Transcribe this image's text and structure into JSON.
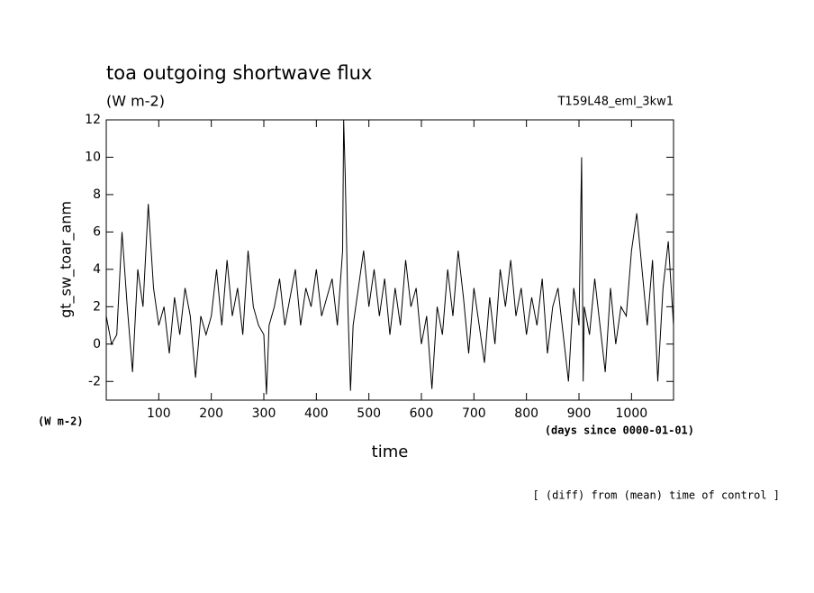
{
  "chart_data": {
    "type": "line",
    "title": "toa outgoing shortwave flux",
    "units": "(W m-2)",
    "run": "T159L48_eml_3kw1",
    "y_label": "gt_sw_toar_anm",
    "y_units": "(W m-2)",
    "x_units": "(days since 0000-01-01)",
    "x_label": "time",
    "footnote": "[ (diff) from (mean) time of control ]",
    "xlim": [
      0,
      1080
    ],
    "xticks": [
      100,
      200,
      300,
      400,
      500,
      600,
      700,
      800,
      900,
      1000
    ],
    "ylim": [
      -3,
      12
    ],
    "yticks": [
      -2,
      0,
      2,
      4,
      6,
      8,
      10,
      12
    ],
    "grid": false,
    "series": [
      {
        "name": "gt_sw_toar_anm",
        "color": "#000000",
        "x": [
          0,
          10,
          20,
          30,
          40,
          50,
          60,
          70,
          80,
          90,
          100,
          110,
          120,
          130,
          140,
          150,
          160,
          170,
          180,
          190,
          200,
          210,
          220,
          230,
          240,
          250,
          260,
          270,
          280,
          290,
          300,
          305,
          310,
          320,
          330,
          340,
          350,
          360,
          370,
          380,
          390,
          400,
          410,
          420,
          430,
          440,
          450,
          452,
          455,
          460,
          465,
          470,
          480,
          490,
          500,
          510,
          520,
          530,
          540,
          550,
          560,
          570,
          580,
          590,
          600,
          610,
          620,
          630,
          640,
          650,
          660,
          670,
          680,
          690,
          700,
          710,
          720,
          730,
          740,
          750,
          760,
          770,
          780,
          790,
          800,
          810,
          820,
          830,
          840,
          850,
          860,
          870,
          880,
          890,
          900,
          905,
          908,
          910,
          920,
          930,
          940,
          950,
          960,
          970,
          980,
          990,
          1000,
          1010,
          1020,
          1030,
          1040,
          1050,
          1060,
          1070,
          1080
        ],
        "values": [
          1.5,
          0,
          0.5,
          6,
          2,
          -1.5,
          4,
          2,
          7.5,
          3,
          1,
          2,
          -0.5,
          2.5,
          0.5,
          3,
          1.5,
          -1.8,
          1.5,
          0.5,
          1.5,
          4,
          1,
          4.5,
          1.5,
          3,
          0.5,
          5,
          2,
          1,
          0.5,
          -2.7,
          1,
          2,
          3.5,
          1,
          2.5,
          4,
          1,
          3,
          2,
          4,
          1.5,
          2.5,
          3.5,
          1,
          5,
          12,
          9,
          2,
          -2.5,
          1,
          3,
          5,
          2,
          4,
          1.5,
          3.5,
          0.5,
          3,
          1,
          4.5,
          2,
          3,
          0,
          1.5,
          -2.4,
          2,
          0.5,
          4,
          1.5,
          5,
          2.5,
          -0.5,
          3,
          1,
          -1,
          2.5,
          0,
          4,
          2,
          4.5,
          1.5,
          3,
          0.5,
          2.5,
          1,
          3.5,
          -0.5,
          2,
          3,
          0.5,
          -2,
          3,
          1,
          10,
          -2,
          2,
          0.5,
          3.5,
          1,
          -1.5,
          3,
          0,
          2,
          1.5,
          5,
          7,
          4,
          1,
          4.5,
          -2,
          3,
          5.5,
          1
        ]
      }
    ]
  }
}
